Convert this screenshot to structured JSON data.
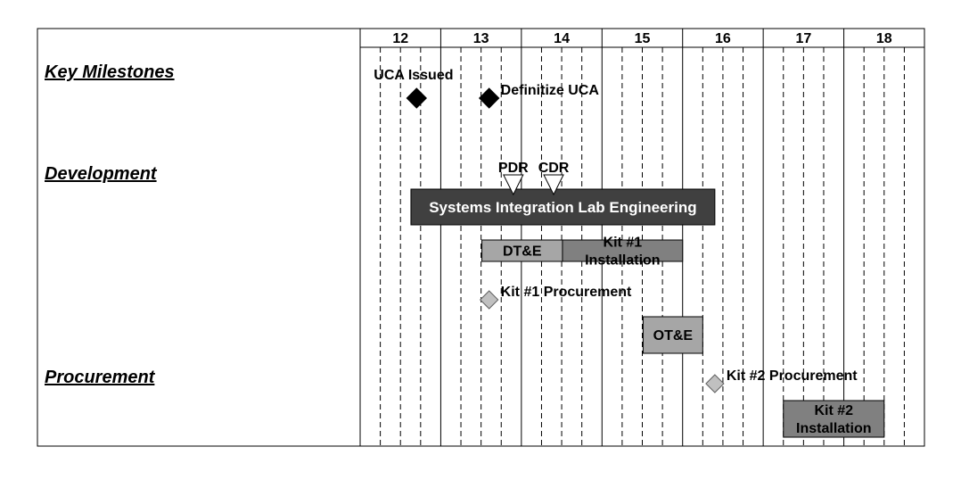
{
  "chart_data": {
    "type": "gantt",
    "time_axis": {
      "ticks": [
        "12",
        "13",
        "14",
        "15",
        "16",
        "17",
        "18"
      ],
      "range": [
        11.5,
        18.5
      ],
      "minor_divisions_per_tick": 4
    },
    "categories": [
      {
        "id": "key",
        "label": "Key Milestones"
      },
      {
        "id": "dev",
        "label": "Development"
      },
      {
        "id": "proc",
        "label": "Procurement"
      }
    ],
    "milestones": [
      {
        "label": "UCA Issued",
        "at": 12.2,
        "style": "filled-diamond",
        "color": "#000000",
        "label_position": "above-left"
      },
      {
        "label": "Definitize UCA",
        "at": 13.1,
        "style": "filled-diamond",
        "color": "#000000",
        "label_position": "right"
      },
      {
        "label": "PDR",
        "at": 13.4,
        "style": "down-triangle",
        "color": "#ffffff",
        "label_position": "above"
      },
      {
        "label": "CDR",
        "at": 13.9,
        "style": "down-triangle",
        "color": "#ffffff",
        "label_position": "above"
      },
      {
        "label": "Kit #1 Procurement",
        "at": 13.1,
        "style": "gray-diamond",
        "color": "#c0c0c0",
        "label_position": "right"
      },
      {
        "label": "Kit #2 Procurement",
        "at": 15.9,
        "style": "gray-diamond",
        "color": "#c0c0c0",
        "label_position": "right"
      }
    ],
    "tasks": [
      {
        "label": "Systems Integration Lab Engineering",
        "start": 12.13,
        "end": 15.9,
        "fill": "#404040",
        "text_color": "#ffffff"
      },
      {
        "label": "DT&E",
        "start": 13.01,
        "end": 14.01,
        "fill": "#a6a6a6",
        "text_color": "#000000"
      },
      {
        "label": "OT&E",
        "start": 15.01,
        "end": 15.75,
        "fill": "#a6a6a6",
        "text_color": "#000000"
      },
      {
        "label": "Kit #1\nInstallation",
        "start": 14.01,
        "end": 15.5,
        "fill": "#808080",
        "text_color": "#000000"
      },
      {
        "label": "Kit #2\nInstallation",
        "start": 16.75,
        "end": 18.0,
        "fill": "#808080",
        "text_color": "#000000"
      }
    ]
  }
}
